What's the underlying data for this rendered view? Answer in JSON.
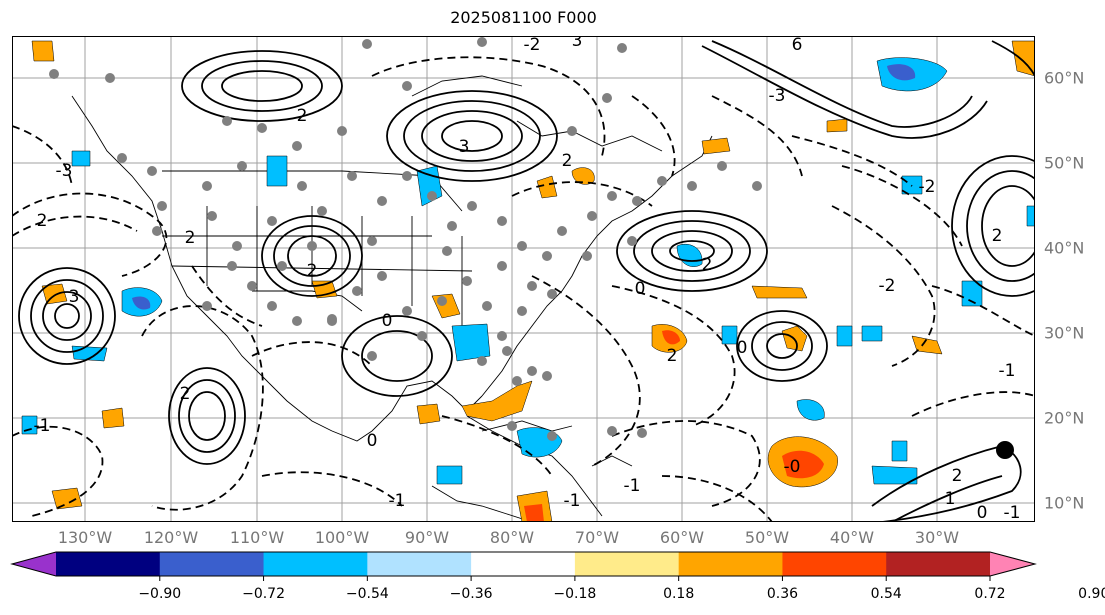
{
  "title": "2025081100 F000",
  "lon_labels": [
    "130°W",
    "120°W",
    "110°W",
    "100°W",
    "90°W",
    "80°W",
    "70°W",
    "60°W",
    "50°W",
    "40°W",
    "30°W"
  ],
  "lat_labels": [
    "60°N",
    "50°N",
    "40°N",
    "30°N",
    "20°N",
    "10°N"
  ],
  "colorbar": {
    "colors": [
      "#9932cc",
      "#000080",
      "#3a5fcd",
      "#00bfff",
      "#b0e2ff",
      "#ffffff",
      "#ffeb8a",
      "#ffa500",
      "#ff4500",
      "#b22222",
      "#ff83b4"
    ],
    "ticks": [
      "−0.90",
      "−0.72",
      "−0.54",
      "−0.36",
      "−0.18",
      "0.18",
      "0.36",
      "0.54",
      "0.72",
      "0.90"
    ]
  },
  "contour_labels": [
    "3",
    "2",
    "-1",
    "2",
    "2",
    "0",
    "3",
    "2",
    "2",
    "0",
    "2",
    "-2",
    "0",
    "-2",
    "-1",
    "-0",
    "2",
    "1",
    "0",
    "2",
    "-1",
    "6",
    "-2",
    "3",
    "2",
    "-1",
    "0",
    "-1",
    "-1",
    "2",
    "-3",
    "-3"
  ],
  "colors": {
    "land_border": "#000000",
    "grid": "#a0a0a0",
    "station_dot": "#808080",
    "positive_fill": "#ffa500",
    "negative_fill": "#00bfff"
  }
}
